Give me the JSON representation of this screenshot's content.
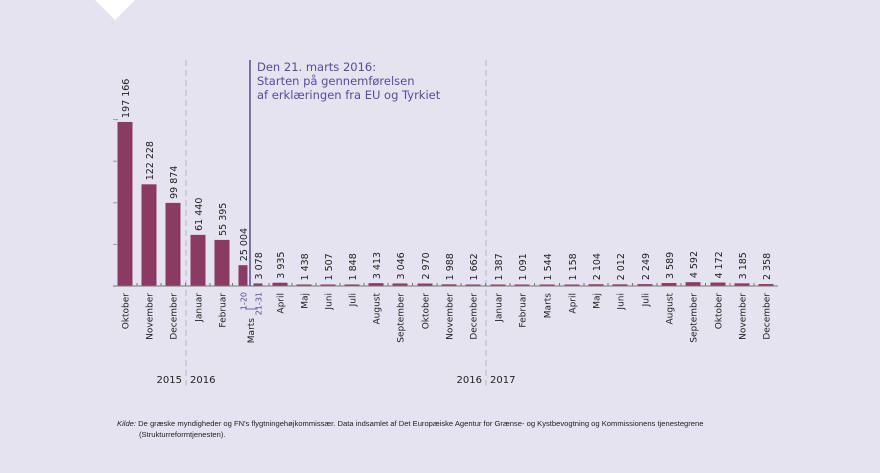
{
  "chart_data": {
    "type": "bar",
    "title": "",
    "xlabel": "",
    "ylabel": "",
    "ylim": [
      0,
      200000
    ],
    "y_ticks": [
      0,
      50000,
      100000,
      150000,
      200000
    ],
    "grid": false,
    "bar_color": "#8b3a62",
    "categories": [
      "Oktober",
      "November",
      "December",
      "Januar",
      "Februar",
      "1-20",
      "21-31",
      "April",
      "Maj",
      "Juni",
      "Juli",
      "August",
      "September",
      "Oktober",
      "November",
      "December",
      "Januar",
      "Februar",
      "Marts",
      "April",
      "Maj",
      "Juni",
      "Juli",
      "August",
      "September",
      "Oktober",
      "November",
      "December"
    ],
    "values": [
      197166,
      122228,
      99874,
      61440,
      55395,
      25004,
      3078,
      3935,
      1438,
      1507,
      1848,
      3413,
      3046,
      2970,
      1988,
      1662,
      1387,
      1091,
      1544,
      1158,
      2104,
      2012,
      2249,
      3589,
      4592,
      4172,
      3185,
      2358
    ],
    "value_labels": [
      "197 166",
      "122 228",
      "99 874",
      "61 440",
      "55 395",
      "25 004",
      "3 078",
      "3 935",
      "1 438",
      "1 507",
      "1 848",
      "3 413",
      "3 046",
      "2 970",
      "1 988",
      "1 662",
      "1 387",
      "1 091",
      "1 544",
      "1 158",
      "2 104",
      "2 012",
      "2 249",
      "3 589",
      "4 592",
      "4 172",
      "3 185",
      "2 358"
    ],
    "march_group_label": "Marts",
    "years": [
      "2015",
      "2016",
      "2016",
      "2017"
    ],
    "annotation": {
      "lines": [
        "Den 21. marts 2016:",
        "Starten på gennemførelsen",
        "af erklæringen fra EU og Tyrkiet"
      ],
      "color": "#5a4b9a"
    }
  },
  "source": {
    "label": "Kilde:",
    "text": "De græske myndigheder og FN's flygtningehøjkommissær. Data indsamlet af Det Europæiske Agentur for Grænse- og Kystbevogtning og Kommissionens tjenestegrene",
    "text2": "(Strukturreformtjenesten)."
  }
}
